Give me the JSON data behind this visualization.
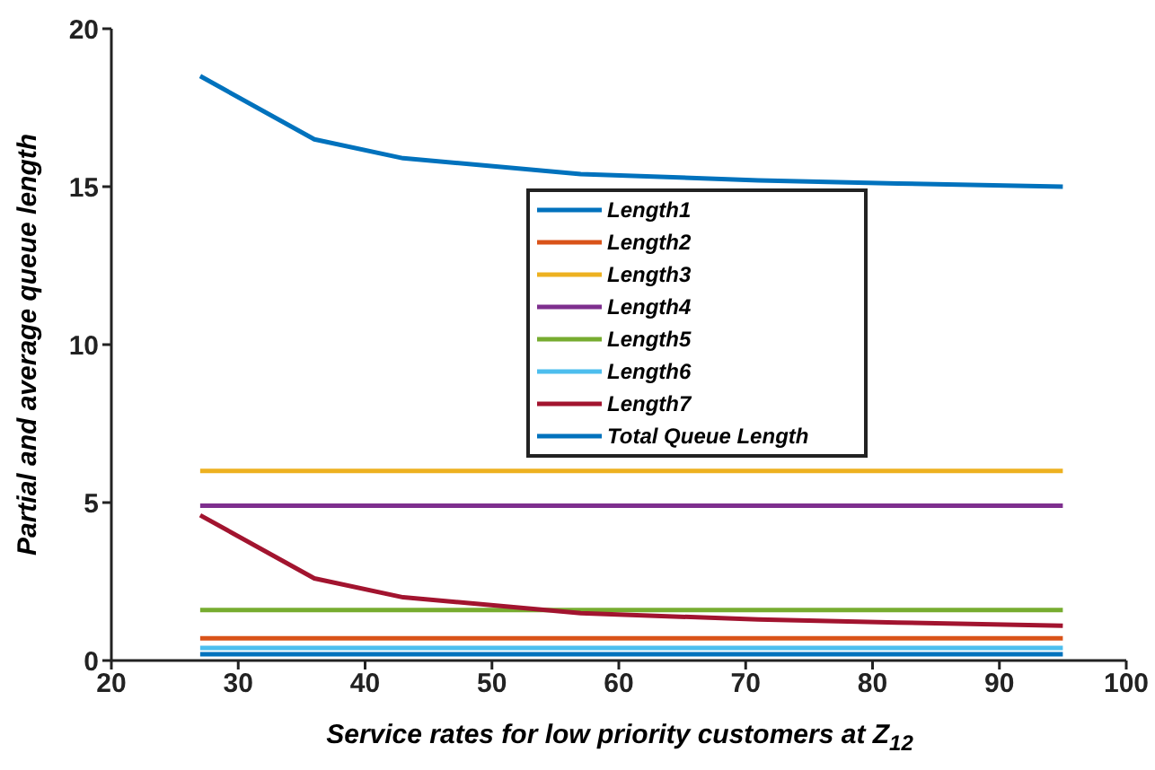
{
  "chart_data": {
    "type": "line",
    "xlabel": "Service rates for low priority customers at Z$_{12}$",
    "ylabel": "Partial and average queue length",
    "x": [
      27,
      36,
      43,
      57,
      71,
      82,
      95
    ],
    "xlim": [
      20,
      100
    ],
    "xticks": [
      20,
      30,
      40,
      50,
      60,
      70,
      80,
      90,
      100
    ],
    "ylim": [
      0,
      20
    ],
    "yticks": [
      0,
      5,
      10,
      15,
      20
    ],
    "grid": false,
    "legend": "top",
    "marker": "none",
    "line_style": "solid",
    "series": [
      {
        "name": "Length1",
        "color": "#0072bd",
        "values": [
          18.5,
          16.5,
          15.9,
          15.4,
          15.2,
          15.1,
          15.0
        ]
      },
      {
        "name": "Length2",
        "color": "#d95319",
        "values": [
          0.7,
          0.7,
          0.7,
          0.7,
          0.7,
          0.7,
          0.7
        ]
      },
      {
        "name": "Length3",
        "color": "#edb120",
        "values": [
          6.0,
          6.0,
          6.0,
          6.0,
          6.0,
          6.0,
          6.0
        ]
      },
      {
        "name": "Length4",
        "color": "#7e2f8e",
        "values": [
          4.9,
          4.9,
          4.9,
          4.9,
          4.9,
          4.9,
          4.9
        ]
      },
      {
        "name": "Length5",
        "color": "#77ac30",
        "values": [
          1.6,
          1.6,
          1.6,
          1.6,
          1.6,
          1.6,
          1.6
        ]
      },
      {
        "name": "Length6",
        "color": "#4dbeee",
        "values": [
          0.4,
          0.4,
          0.4,
          0.4,
          0.4,
          0.4,
          0.4
        ]
      },
      {
        "name": "Length7",
        "color": "#a2142f",
        "values": [
          4.6,
          2.6,
          2.0,
          1.5,
          1.3,
          1.2,
          1.1
        ]
      },
      {
        "name": "Total Queue Length",
        "color": "#0072bd",
        "values": [
          0.2,
          0.2,
          0.2,
          0.2,
          0.2,
          0.2,
          0.2
        ]
      }
    ]
  }
}
